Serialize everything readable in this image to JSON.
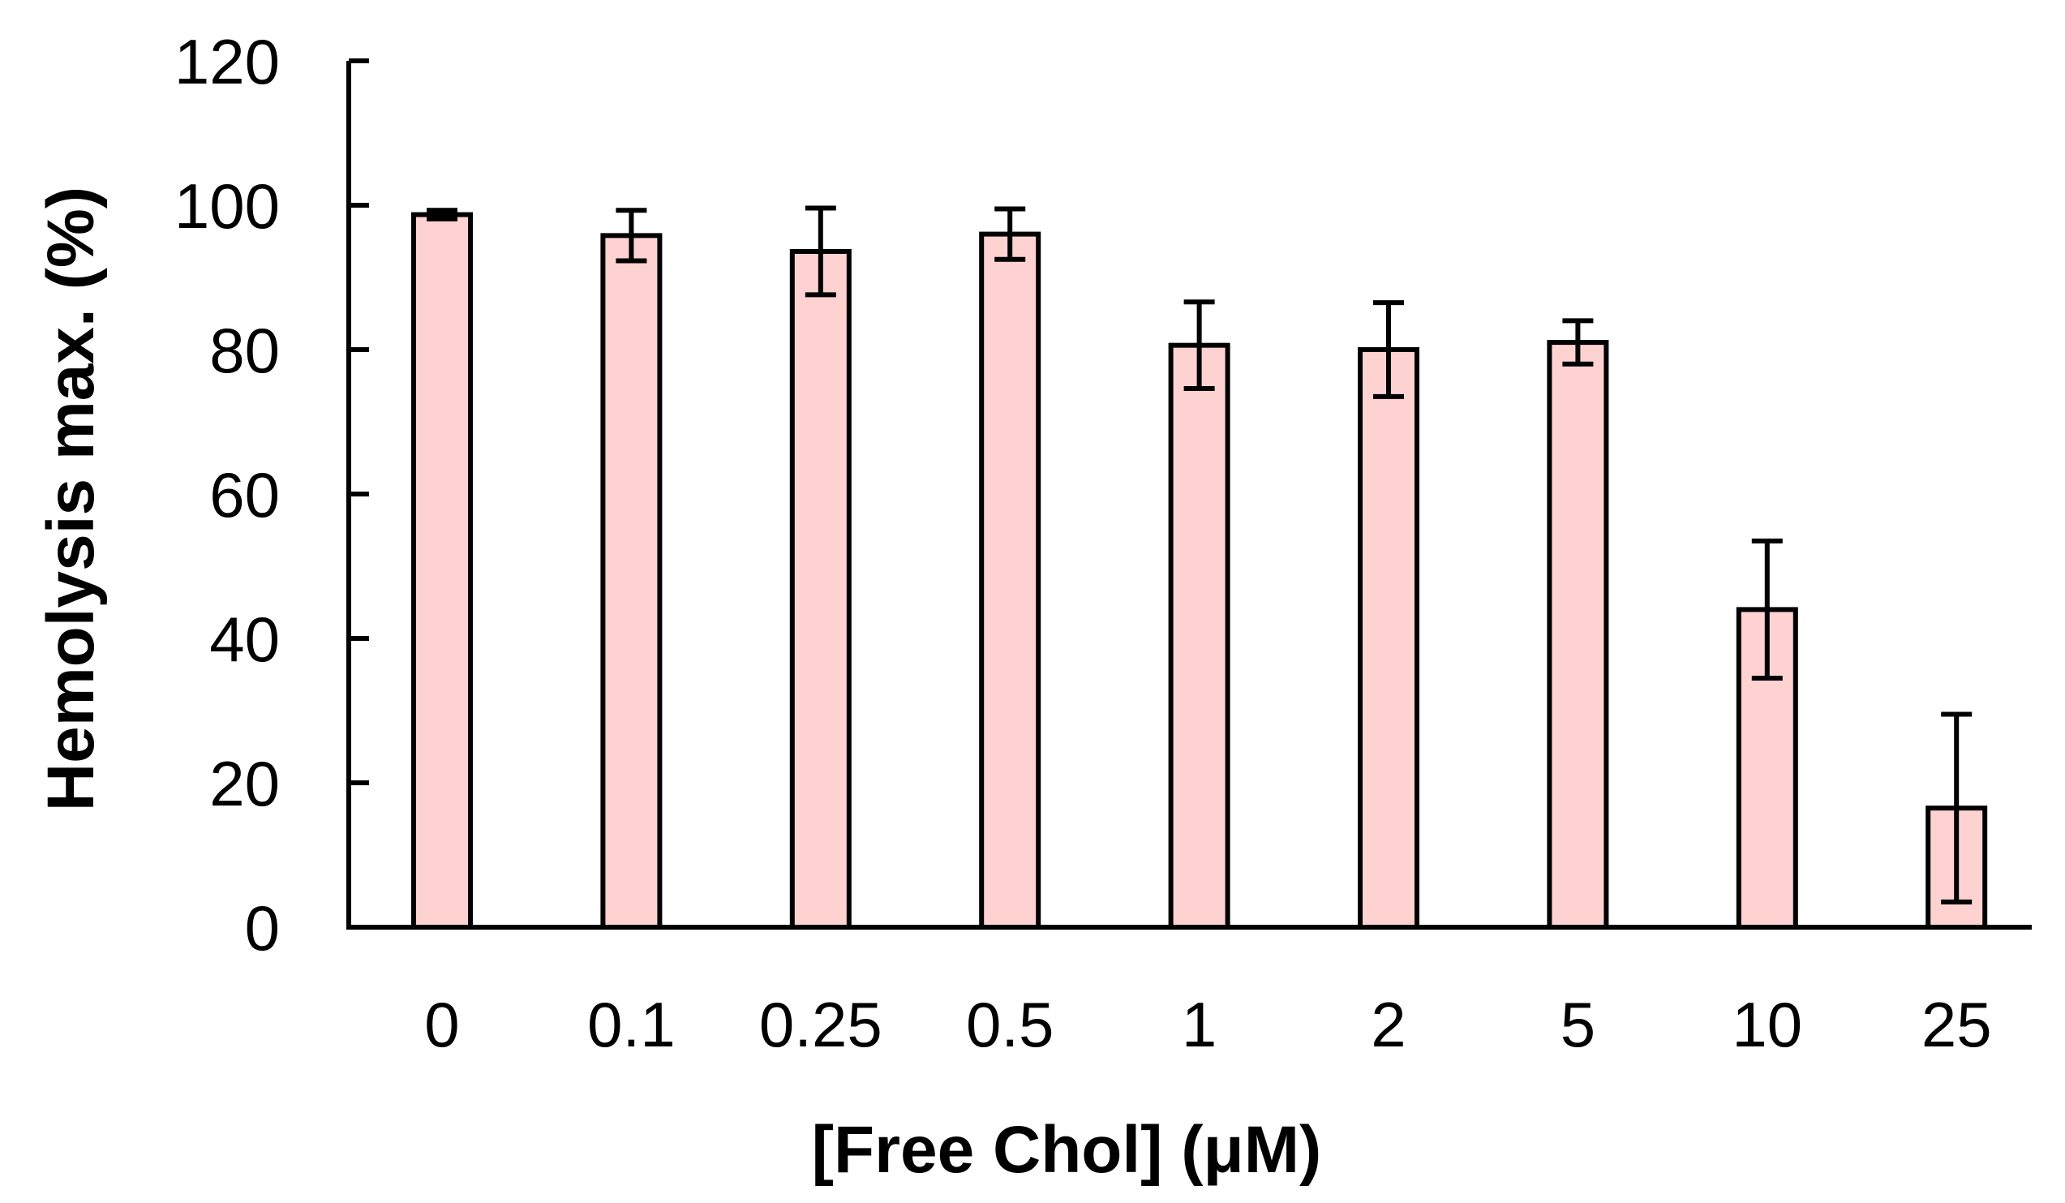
{
  "chart_data": {
    "type": "bar",
    "xlabel": "[Free Chol] (μM)",
    "ylabel": "Hemolysis max. (%)",
    "categories": [
      "0",
      "0.1",
      "0.25",
      "0.5",
      "1",
      "2",
      "5",
      "10",
      "25"
    ],
    "values": [
      98.7,
      95.8,
      93.6,
      96.0,
      80.6,
      80.0,
      81.0,
      44.0,
      16.5
    ],
    "error_upper": [
      0.6,
      3.5,
      6.0,
      3.5,
      6.0,
      6.5,
      3.0,
      9.5,
      13.0
    ],
    "error_lower": [
      0.6,
      3.5,
      6.0,
      3.5,
      6.0,
      6.5,
      3.0,
      9.5,
      13.0
    ],
    "ylim": [
      0,
      120
    ],
    "yticks": [
      "0",
      "20",
      "40",
      "60",
      "80",
      "100",
      "120"
    ],
    "grid": false,
    "colors": {
      "bar_fill": "#ffd2d2",
      "bar_stroke": "#000000",
      "error_bar": "#000000"
    }
  }
}
